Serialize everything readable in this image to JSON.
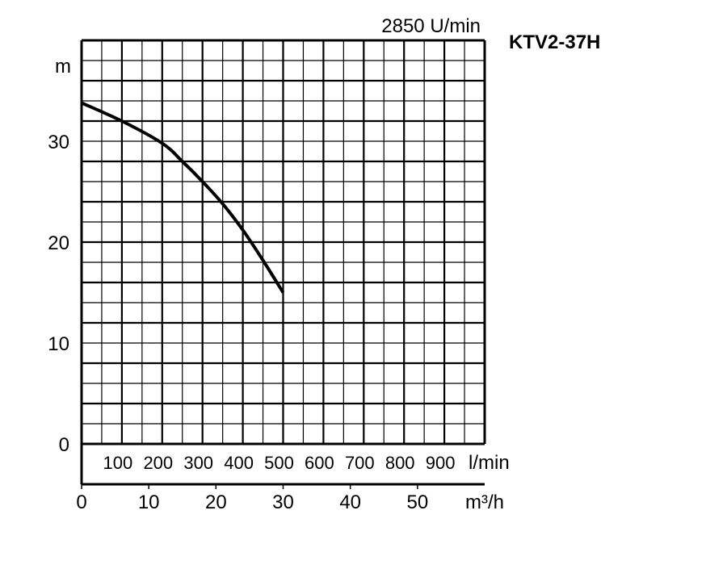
{
  "chart_data": {
    "type": "line",
    "title": "KTV2-37H",
    "subtitle": "2850 U/min",
    "ylabel": "m",
    "ylim": [
      0,
      40
    ],
    "yticks": [
      0,
      10,
      20,
      30
    ],
    "xlabel": "l/min",
    "xlim": [
      0,
      1000
    ],
    "xticks": [
      100,
      200,
      300,
      400,
      500,
      600,
      700,
      800,
      900
    ],
    "x2label": "m³/h",
    "x2lim": [
      0,
      60
    ],
    "x2ticks": [
      0,
      10,
      20,
      30,
      40,
      50
    ],
    "grid": true,
    "series": [
      {
        "x": [
          0,
          100,
          200,
          250,
          300,
          350,
          400,
          450,
          500
        ],
        "y": [
          33.8,
          32,
          29.8,
          28,
          26,
          23.8,
          21.2,
          18.2,
          15
        ],
        "color": "#000000"
      }
    ]
  }
}
